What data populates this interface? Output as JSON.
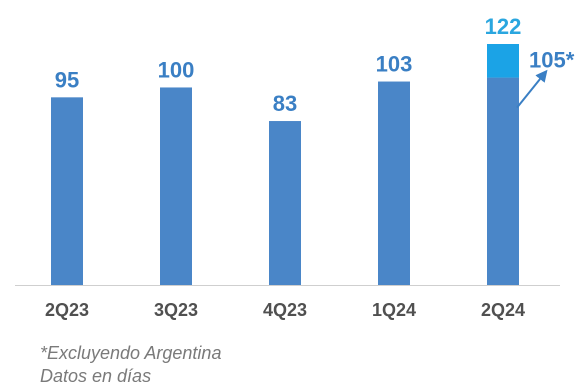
{
  "chart_data": {
    "type": "bar",
    "categories": [
      "2Q23",
      "3Q23",
      "4Q23",
      "1Q24",
      "2Q24"
    ],
    "series": [
      {
        "name": "",
        "values": [
          95,
          100,
          83,
          103,
          105
        ]
      },
      {
        "name": "",
        "values": [
          0,
          0,
          0,
          0,
          17
        ]
      }
    ],
    "totals": [
      95,
      100,
      83,
      103,
      122
    ],
    "value_labels": [
      "95",
      "100",
      "83",
      "103",
      "122"
    ],
    "annotation": {
      "category": "2Q24",
      "value": 105,
      "label": "105*"
    },
    "stacked": true,
    "ylim": [
      0,
      122
    ],
    "grid": false,
    "legend": "none",
    "title": "",
    "xlabel": "",
    "ylabel": "",
    "colors": {
      "base": "#4a86c8",
      "increment": "#1ba3e6",
      "value_label": "#3a7fc4",
      "top_value_label": "#2aa6df",
      "tick_label": "#505050",
      "axis": "#cfcfcf",
      "footnote": "#7a7a7a"
    }
  },
  "footnotes": [
    "*Excluyendo Argentina",
    "Datos en días"
  ]
}
